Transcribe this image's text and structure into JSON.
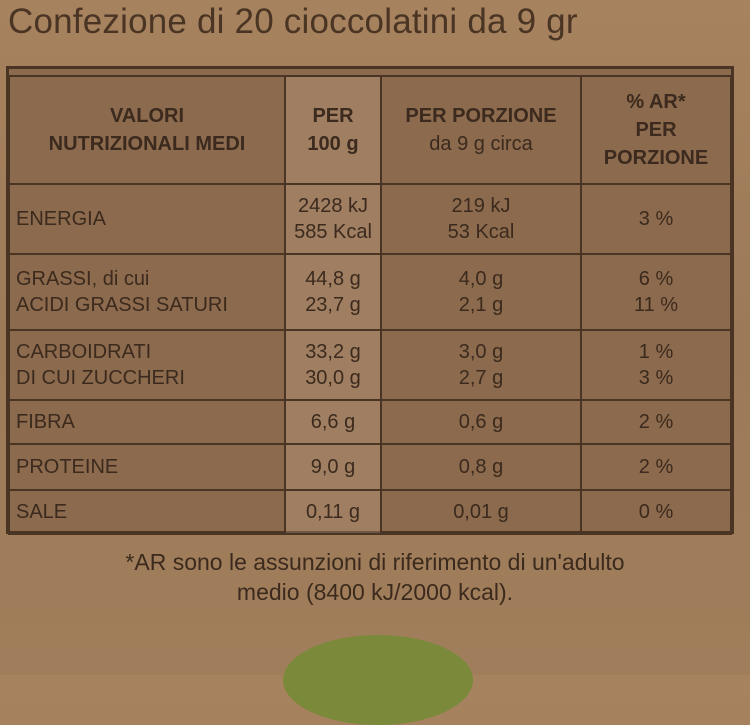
{
  "heading": "Confezione di 20 cioccolatini da 9 gr",
  "table": {
    "headers": [
      [
        "VALORI",
        "NUTRIZIONALI MEDI"
      ],
      [
        "PER",
        "100 g"
      ],
      [
        "PER PORZIONE",
        "da 9 g circa"
      ],
      [
        "% AR*",
        "PER",
        "PORZIONE"
      ]
    ],
    "rows": [
      {
        "label": [
          "ENERGIA"
        ],
        "per100": [
          "2428 kJ",
          "585 Kcal"
        ],
        "portion": [
          "219 kJ",
          "53 Kcal"
        ],
        "ar": [
          "3 %"
        ]
      },
      {
        "label": [
          "GRASSI, di cui",
          "ACIDI GRASSI SATURI"
        ],
        "per100": [
          "44,8 g",
          "23,7 g"
        ],
        "portion": [
          "4,0 g",
          "2,1 g"
        ],
        "ar": [
          "6 %",
          "11 %"
        ]
      },
      {
        "label": [
          "CARBOIDRATI",
          "DI CUI ZUCCHERI"
        ],
        "per100": [
          "33,2 g",
          "30,0 g"
        ],
        "portion": [
          "3,0 g",
          "2,7 g"
        ],
        "ar": [
          "1 %",
          "3 %"
        ]
      },
      {
        "label": [
          "FIBRA"
        ],
        "per100": [
          "6,6 g"
        ],
        "portion": [
          "0,6 g"
        ],
        "ar": [
          "2 %"
        ]
      },
      {
        "label": [
          "PROTEINE"
        ],
        "per100": [
          "9,0 g"
        ],
        "portion": [
          "0,8 g"
        ],
        "ar": [
          "2 %"
        ]
      },
      {
        "label": [
          "SALE"
        ],
        "per100": [
          "0,11 g"
        ],
        "portion": [
          "0,01 g"
        ],
        "ar": [
          "0 %"
        ]
      }
    ]
  },
  "footnote": [
    "*AR sono le assunzioni di riferimento di un'adulto",
    "medio (8400 kJ/2000 kcal)."
  ]
}
